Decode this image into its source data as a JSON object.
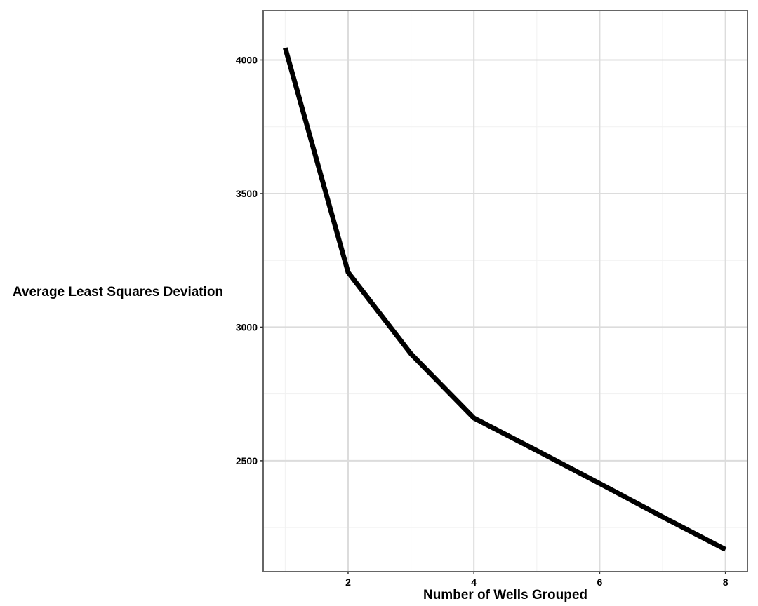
{
  "chart_data": {
    "type": "line",
    "title": "",
    "xlabel": "Number of Wells Grouped",
    "ylabel": "Average Least Squares Deviation",
    "x": [
      1,
      2,
      3,
      4,
      5,
      6,
      7,
      8
    ],
    "series": [
      {
        "values": [
          4045,
          3205,
          2900,
          2660,
          2538,
          2415,
          2290,
          2168
        ]
      }
    ],
    "xlim": [
      0.65,
      8.35
    ],
    "ylim": [
      2085,
      4185
    ],
    "x_ticks": [
      2,
      4,
      6,
      8
    ],
    "x_tick_labels": [
      "2",
      "4",
      "6",
      "8"
    ],
    "x_minor_ticks": [
      1,
      3,
      5,
      7
    ],
    "y_ticks": [
      2500,
      3000,
      3500,
      4000
    ],
    "y_tick_labels": [
      "2500",
      "3000",
      "3500",
      "4000"
    ],
    "y_minor_ticks": [
      2250,
      2750,
      3250,
      3750
    ],
    "grid": true,
    "line_color": "#000000",
    "grid_color": "#dcdcdc",
    "minor_grid_color": "#f1f1f1",
    "panel_border_color": "#666666"
  }
}
